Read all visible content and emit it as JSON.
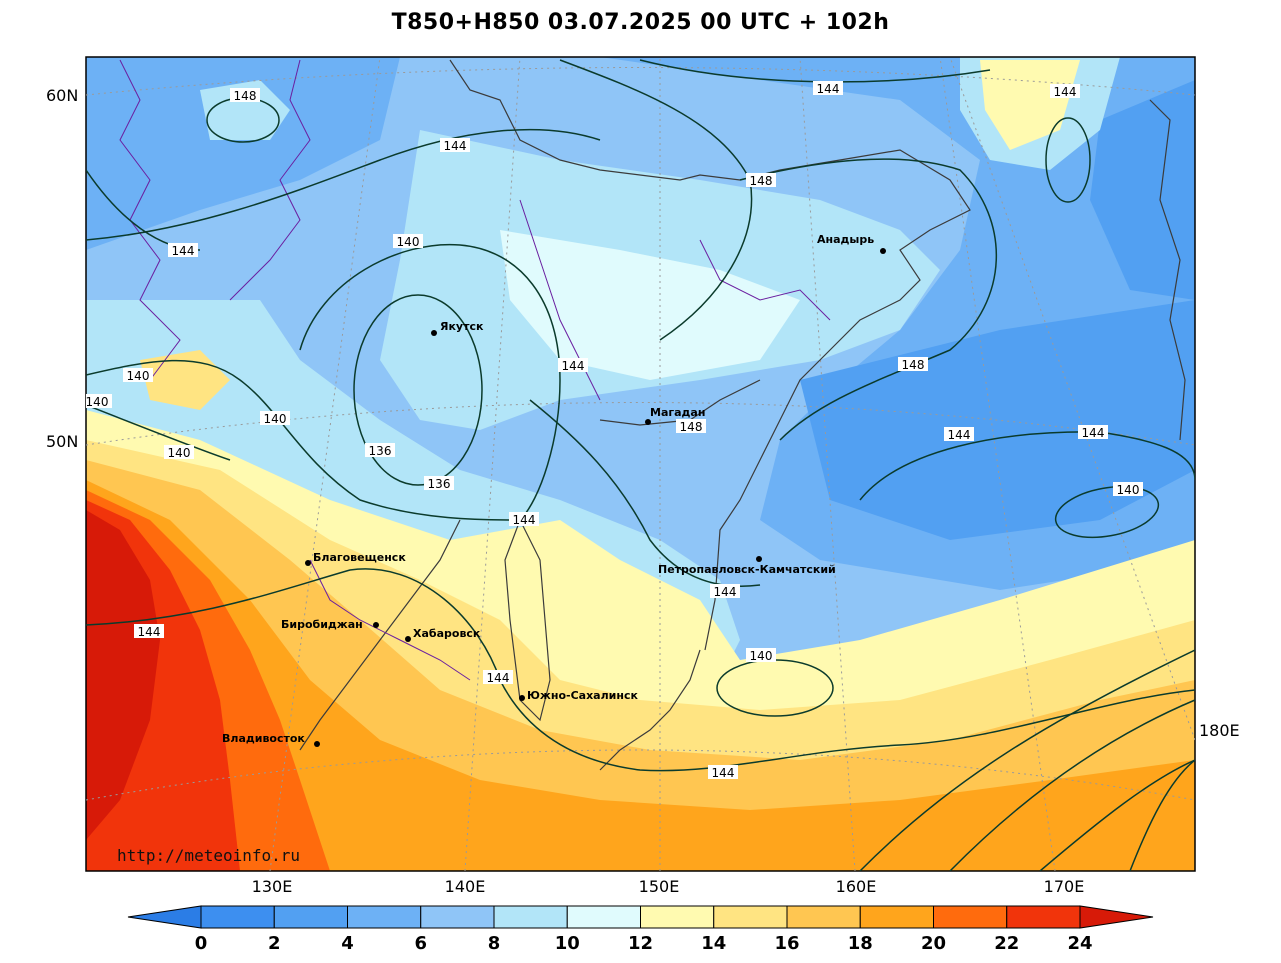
{
  "title": "T850+H850 03.07.2025 00 UTC + 102h",
  "credit": "http://meteoinfo.ru",
  "lat_labels": [
    "60N",
    "50N"
  ],
  "lon_labels": [
    "130E",
    "140E",
    "150E",
    "160E",
    "170E",
    "180E"
  ],
  "colorbar": {
    "ticks": [
      "0",
      "2",
      "4",
      "6",
      "8",
      "10",
      "12",
      "14",
      "16",
      "18",
      "20",
      "22",
      "24"
    ],
    "colors": [
      "#3d8ff0",
      "#52a0f2",
      "#6db1f5",
      "#8fc5f7",
      "#b2e5f8",
      "#e0fbfd",
      "#fffab0",
      "#ffe482",
      "#ffc651",
      "#ffa51c",
      "#ff6b0d",
      "#f1340b"
    ],
    "under_color": "#2b7de6",
    "over_color": "#d71a08"
  },
  "cities": [
    {
      "name": "Якутск"
    },
    {
      "name": "Анадырь"
    },
    {
      "name": "Магадан"
    },
    {
      "name": "Петропавловск-Камчатский"
    },
    {
      "name": "Благовещенск"
    },
    {
      "name": "Биробиджан"
    },
    {
      "name": "Хабаровск"
    },
    {
      "name": "Южно-Сахалинск"
    },
    {
      "name": "Владивосток"
    }
  ],
  "contour_labels": [
    "148",
    "144",
    "144",
    "144",
    "144",
    "148",
    "140",
    "144",
    "140",
    "140",
    "140",
    "140",
    "136",
    "136",
    "144",
    "148",
    "148",
    "144",
    "144",
    "140",
    "140",
    "144",
    "144",
    "144",
    "140",
    "144"
  ]
}
